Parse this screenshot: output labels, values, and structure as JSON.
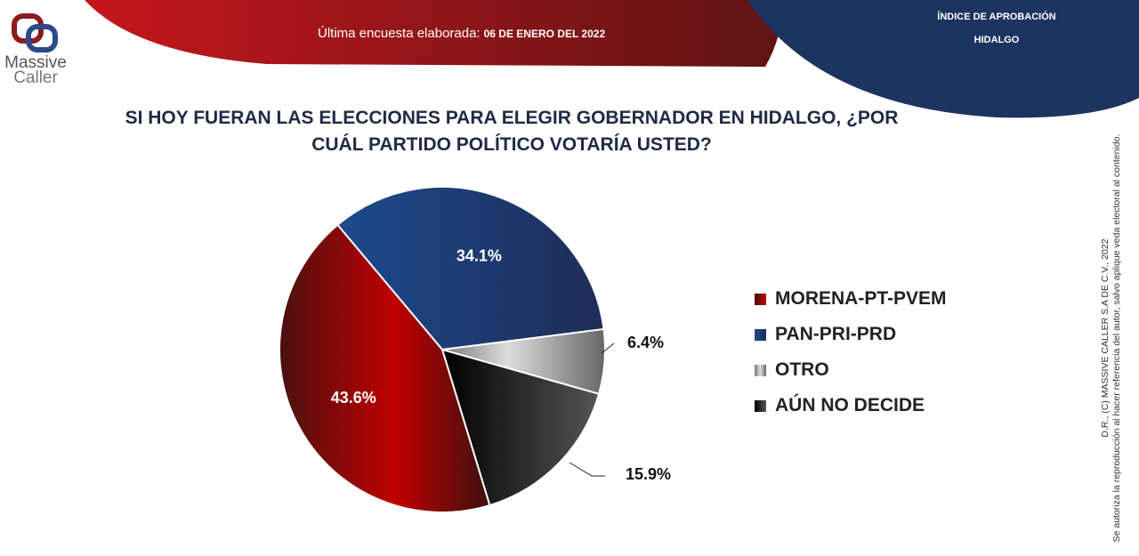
{
  "header": {
    "survey_label": "Última encuesta elaborada:",
    "survey_date": "06 DE ENERO DEL 2022",
    "approval_line1": "ÍNDICE DE APROBACIÓN",
    "approval_line2": "HIDALGO"
  },
  "logo": {
    "line1": "Massive",
    "line2": "Caller"
  },
  "footer": {
    "line1": "D.R., (C) MASSIVE CALLER S.A DE C.V., 2022",
    "line2": "Se autoriza la reproducción al hacer referencia del autor, salvo aplique veda electoral al contenido."
  },
  "chart_data": {
    "type": "pie",
    "title": "SI HOY FUERAN LAS ELECCIONES PARA ELEGIR GOBERNADOR EN HIDALGO, ¿POR CUÁL PARTIDO POLÍTICO VOTARÍA USTED?",
    "legend_position": "right",
    "slices": [
      {
        "name": "PAN-PRI-PRD",
        "value": 34.1,
        "label": "34.1%",
        "color": "#1b4a8c"
      },
      {
        "name": "OTRO",
        "value": 6.4,
        "label": "6.4%",
        "color": "#9a9a9a"
      },
      {
        "name": "AÚN NO DECIDE",
        "value": 15.9,
        "label": "15.9%",
        "color": "#222222"
      },
      {
        "name": "MORENA-PT-PVEM",
        "value": 43.6,
        "label": "43.6%",
        "color": "#b00000"
      }
    ],
    "legend_order": [
      "MORENA-PT-PVEM",
      "PAN-PRI-PRD",
      "OTRO",
      "AÚN NO DECIDE"
    ]
  }
}
